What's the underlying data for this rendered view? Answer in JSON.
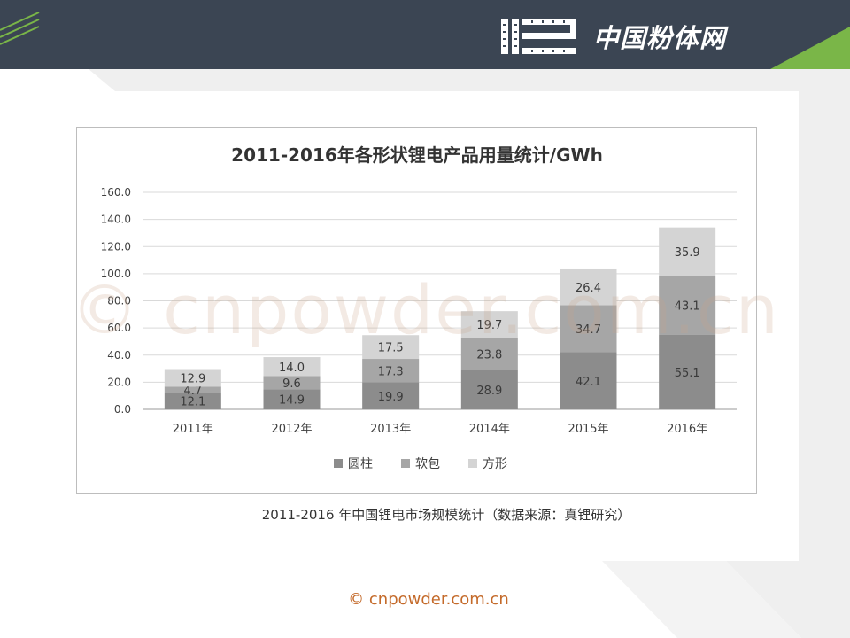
{
  "header": {
    "logo_text": "中国粉体网"
  },
  "caption": "2011-2016 年中国锂电市场规模统计（数据来源：真锂研究）",
  "footer": "© cnpowder.com.cn",
  "watermark": "© cnpowder.com.cn",
  "colors": {
    "header_bg": "#3b4553",
    "accent_green": "#7ab648",
    "series_cylinder": "#8c8c8c",
    "series_soft": "#a6a6a6",
    "series_prismatic": "#d4d4d4",
    "footer_text": "#c46a2a"
  },
  "chart_data": {
    "type": "bar",
    "stacked": true,
    "title": "2011-2016年各形状锂电产品用量统计/GWh",
    "xlabel": "",
    "ylabel": "",
    "ylim": [
      0,
      160
    ],
    "yticks": [
      "0.0",
      "20.0",
      "40.0",
      "60.0",
      "80.0",
      "100.0",
      "120.0",
      "140.0",
      "160.0"
    ],
    "categories": [
      "2011年",
      "2012年",
      "2013年",
      "2014年",
      "2015年",
      "2016年"
    ],
    "series": [
      {
        "name": "圆柱",
        "values": [
          12.1,
          14.9,
          19.9,
          28.9,
          42.1,
          55.1
        ],
        "labels": [
          "12.1",
          "14.9",
          "19.9",
          "28.9",
          "42.1",
          "55.1"
        ],
        "color": "#8c8c8c"
      },
      {
        "name": "软包",
        "values": [
          4.7,
          9.6,
          17.3,
          23.8,
          34.7,
          43.1
        ],
        "labels": [
          "4.7",
          "9.6",
          "17.3",
          "23.8",
          "34.7",
          "43.1"
        ],
        "color": "#a6a6a6"
      },
      {
        "name": "方形",
        "values": [
          12.9,
          14.0,
          17.5,
          19.7,
          26.4,
          35.9
        ],
        "labels": [
          "12.9",
          "14.0",
          "17.5",
          "19.7",
          "26.4",
          "35.9"
        ],
        "color": "#d4d4d4"
      }
    ],
    "grid": true,
    "legend": "bottom"
  }
}
